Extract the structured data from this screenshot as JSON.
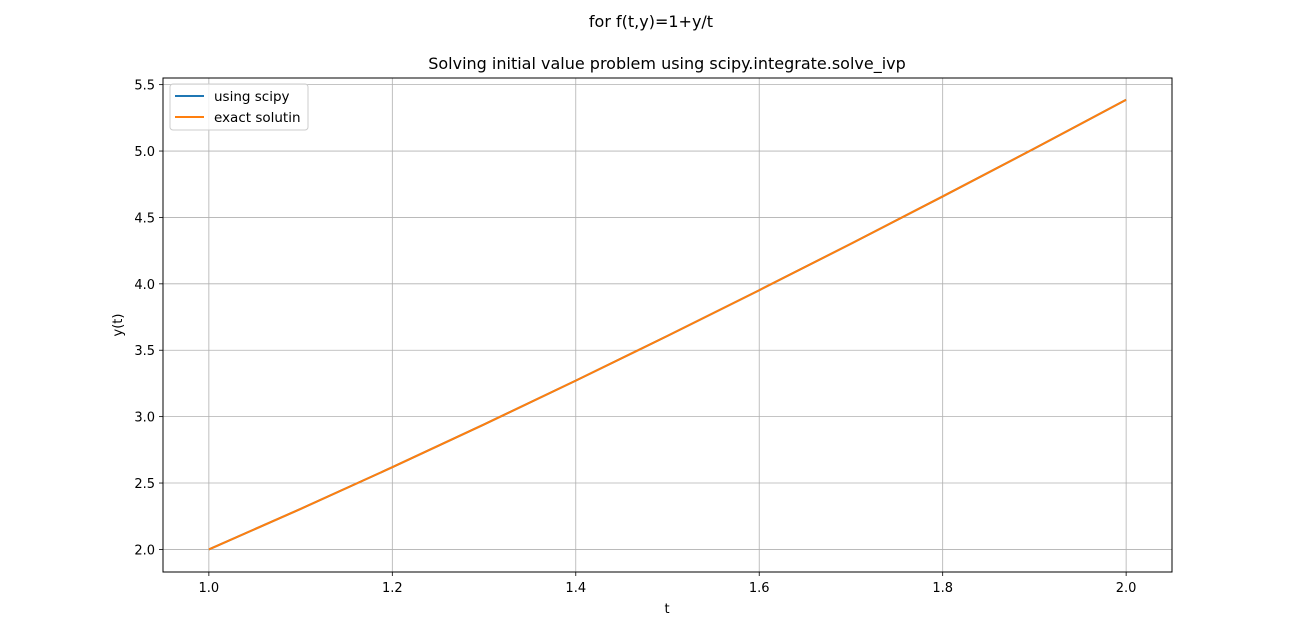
{
  "figure": {
    "suptitle": "for f(t,y)=1+y/t"
  },
  "chart_data": {
    "type": "line",
    "title": "Solving initial value problem using scipy.integrate.solve_ivp",
    "xlabel": "t",
    "ylabel": "y(t)",
    "xlim": [
      0.95,
      2.05
    ],
    "ylim": [
      1.83,
      5.55
    ],
    "xticks": [
      1.0,
      1.2,
      1.4,
      1.6,
      1.8,
      2.0
    ],
    "xtick_labels": [
      "1.0",
      "1.2",
      "1.4",
      "1.6",
      "1.8",
      "2.0"
    ],
    "yticks": [
      2.0,
      2.5,
      3.0,
      3.5,
      4.0,
      4.5,
      5.0,
      5.5
    ],
    "ytick_labels": [
      "2.0",
      "2.5",
      "3.0",
      "3.5",
      "4.0",
      "4.5",
      "5.0",
      "5.5"
    ],
    "grid": true,
    "legend_position": "upper-left",
    "series": [
      {
        "name": "using scipy",
        "color": "#1f77b4",
        "x": [
          1.0,
          1.1,
          1.2,
          1.3,
          1.4,
          1.5,
          1.6,
          1.7,
          1.8,
          1.9,
          2.0
        ],
        "y": [
          2.0,
          2.305,
          2.619,
          2.941,
          3.271,
          3.608,
          3.952,
          4.302,
          4.658,
          5.019,
          5.386
        ]
      },
      {
        "name": "exact solutin",
        "color": "#ff7f0e",
        "x": [
          1.0,
          1.1,
          1.2,
          1.3,
          1.4,
          1.5,
          1.6,
          1.7,
          1.8,
          1.9,
          2.0
        ],
        "y": [
          2.0,
          2.305,
          2.619,
          2.941,
          3.271,
          3.608,
          3.952,
          4.302,
          4.658,
          5.019,
          5.386
        ]
      }
    ]
  }
}
